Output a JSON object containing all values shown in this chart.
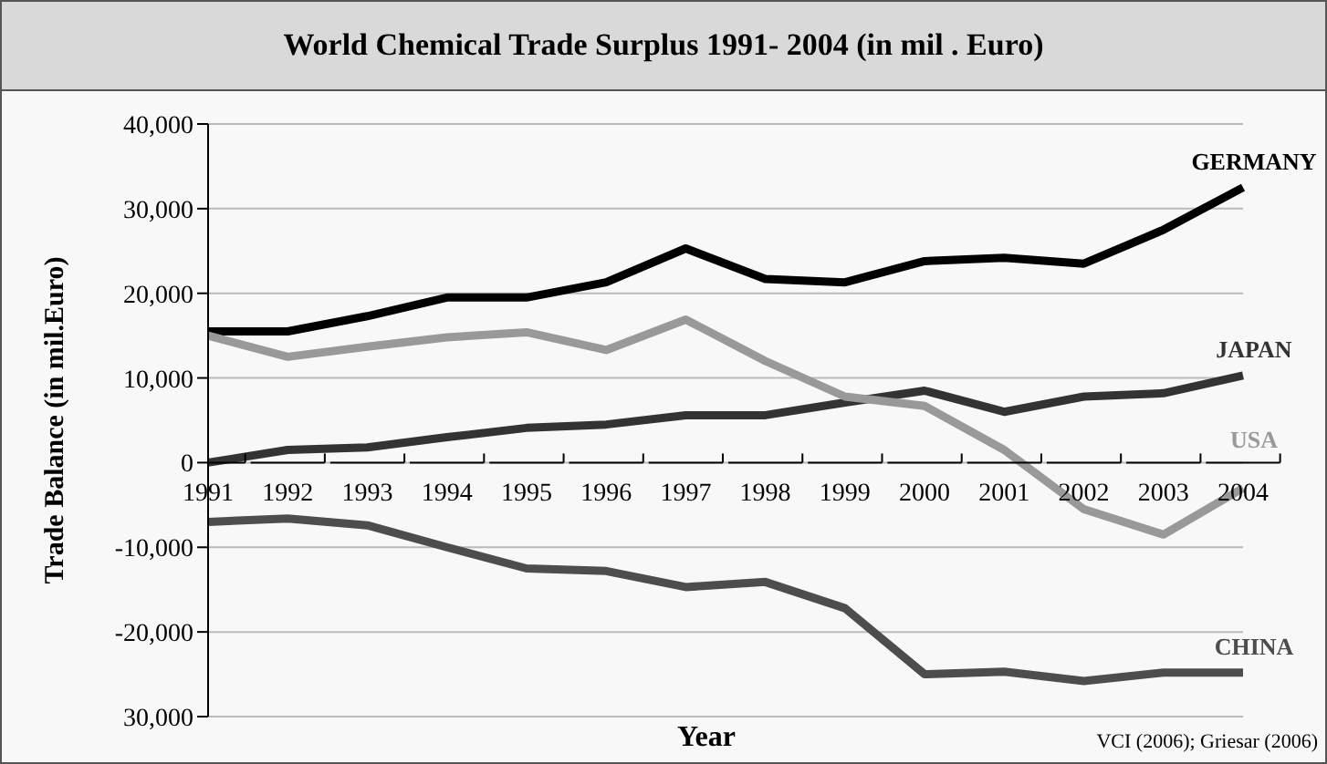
{
  "chart_data": {
    "type": "line",
    "title": "World Chemical Trade Surplus 1991- 2004 (in mil . Euro)",
    "xlabel": "Year",
    "ylabel": "Trade Balance (in mil.Euro)",
    "categories": [
      "1991",
      "1992",
      "1993",
      "1994",
      "1995",
      "1996",
      "1997",
      "1998",
      "1999",
      "2000",
      "2001",
      "2002",
      "2003",
      "2004"
    ],
    "series": [
      {
        "name": "GERMANY",
        "color": "#000000",
        "values": [
          15500,
          15500,
          17300,
          19500,
          19500,
          21300,
          25300,
          21700,
          21300,
          23800,
          24200,
          23500,
          27500,
          32500
        ]
      },
      {
        "name": "JAPAN",
        "color": "#333333",
        "values": [
          0,
          1500,
          1800,
          3000,
          4100,
          4500,
          5600,
          5600,
          7100,
          8500,
          6000,
          7800,
          8200,
          10300
        ]
      },
      {
        "name": "USA",
        "color": "#999999",
        "values": [
          15000,
          12500,
          13700,
          14800,
          15400,
          13300,
          16900,
          12000,
          7800,
          6700,
          1500,
          -5500,
          -8500,
          -3000
        ]
      },
      {
        "name": "CHINA",
        "color": "#4d4d4d",
        "values": [
          -7000,
          -6600,
          -7400,
          -10000,
          -12500,
          -12800,
          -14700,
          -14100,
          -17200,
          -25000,
          -24700,
          -25800,
          -24800,
          -24800
        ]
      }
    ],
    "ylim": [
      -30000,
      40000
    ],
    "yticks": [
      {
        "value": -30000,
        "label": "30,000"
      },
      {
        "value": -20000,
        "label": "-20,000"
      },
      {
        "value": -10000,
        "label": "-10,000"
      },
      0,
      {
        "value": 10000,
        "label": "10,000"
      },
      {
        "value": 20000,
        "label": "20,000"
      },
      {
        "value": 30000,
        "label": "30,000"
      },
      {
        "value": 40000,
        "label": "40,000"
      }
    ],
    "grid": "y",
    "legend": false,
    "marker": "none",
    "line_style": "solid",
    "annotations": [
      "VCI (2006); Griesar  (2006)"
    ]
  }
}
